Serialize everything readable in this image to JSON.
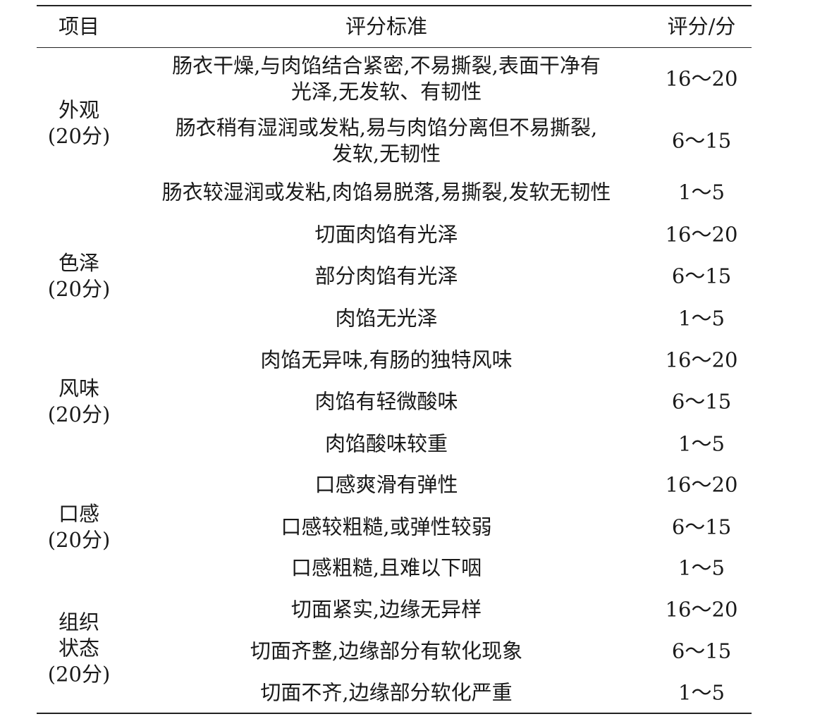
{
  "header": {
    "item": "项目",
    "criteria": "评分标准",
    "score": "评分/分"
  },
  "groups": [
    {
      "label": [
        "外观",
        "(20分)"
      ]
    },
    {
      "label": [
        "色泽",
        "(20分)"
      ]
    },
    {
      "label": [
        "风味",
        "(20分)"
      ]
    },
    {
      "label": [
        "口感",
        "(20分)"
      ]
    },
    {
      "label": [
        "组织",
        "状态",
        "(20分)"
      ]
    }
  ],
  "rows": [
    {
      "criteria": [
        "肠衣干燥,与肉馅结合紧密,不易撕裂,表面干净有",
        "光泽,无发软、有韧性"
      ],
      "score": "16～20"
    },
    {
      "criteria": [
        "肠衣稍有湿润或发粘,易与肉馅分离但不易撕裂,",
        "发软,无韧性"
      ],
      "score": "6～15"
    },
    {
      "criteria": [
        "肠衣较湿润或发粘,肉馅易脱落,易撕裂,发软无韧性"
      ],
      "score": "1～5"
    },
    {
      "criteria": [
        "切面肉馅有光泽"
      ],
      "score": "16～20"
    },
    {
      "criteria": [
        "部分肉馅有光泽"
      ],
      "score": "6～15"
    },
    {
      "criteria": [
        "肉馅无光泽"
      ],
      "score": "1～5"
    },
    {
      "criteria": [
        "肉馅无异味,有肠的独特风味"
      ],
      "score": "16～20"
    },
    {
      "criteria": [
        "肉馅有轻微酸味"
      ],
      "score": "6～15"
    },
    {
      "criteria": [
        "肉馅酸味较重"
      ],
      "score": "1～5"
    },
    {
      "criteria": [
        "口感爽滑有弹性"
      ],
      "score": "16～20"
    },
    {
      "criteria": [
        "口感较粗糙,或弹性较弱"
      ],
      "score": "6～15"
    },
    {
      "criteria": [
        "口感粗糙,且难以下咽"
      ],
      "score": "1～5"
    },
    {
      "criteria": [
        "切面紧实,边缘无异样"
      ],
      "score": "16～20"
    },
    {
      "criteria": [
        "切面齐整,边缘部分有软化现象"
      ],
      "score": "6～15"
    },
    {
      "criteria": [
        "切面不齐,边缘部分软化严重"
      ],
      "score": "1～5"
    }
  ]
}
